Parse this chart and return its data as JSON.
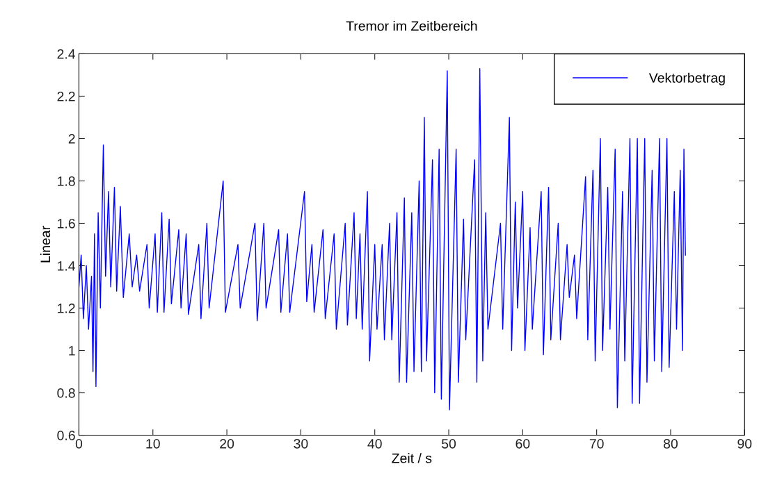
{
  "chart_data": {
    "type": "line",
    "title": "Tremor im Zeitbereich",
    "xlabel": "Zeit / s",
    "ylabel": "Linear",
    "xlim": [
      0,
      90
    ],
    "xticks": [
      0,
      10,
      20,
      30,
      40,
      50,
      60,
      70,
      80,
      90
    ],
    "ylim": [
      0.6,
      2.4
    ],
    "yticks": [
      0.6,
      0.8,
      1,
      1.2,
      1.4,
      1.6,
      1.8,
      2,
      2.2,
      2.4
    ],
    "grid": false,
    "legend": "top right",
    "marker": "none",
    "line_style": "solid",
    "series": [
      {
        "name": "Vektorbetrag",
        "color": "#0000ff",
        "x": [
          0,
          0.3,
          0.6,
          1.0,
          1.3,
          1.7,
          1.9,
          2.1,
          2.3,
          2.6,
          2.9,
          3.3,
          3.6,
          4.0,
          4.3,
          4.8,
          5.1,
          5.6,
          6.0,
          6.8,
          7.2,
          7.8,
          8.2,
          9.2,
          9.5,
          10.3,
          10.6,
          11.2,
          11.5,
          12.2,
          12.5,
          13.5,
          13.8,
          14.5,
          14.8,
          16.2,
          16.5,
          17.3,
          17.6,
          19.5,
          19.8,
          21.5,
          21.8,
          23.8,
          24.1,
          25.0,
          25.3,
          27.0,
          27.3,
          28.2,
          28.5,
          30.5,
          30.8,
          31.5,
          31.8,
          33.0,
          33.3,
          34.5,
          34.8,
          36.0,
          36.3,
          37.2,
          37.5,
          38.0,
          38.3,
          39.0,
          39.3,
          40.0,
          40.3,
          41.0,
          41.3,
          42.0,
          42.3,
          43.0,
          43.3,
          44.0,
          44.3,
          45.0,
          45.3,
          46.0,
          46.3,
          46.7,
          47.0,
          47.8,
          48.1,
          48.7,
          49.0,
          49.8,
          50.1,
          51.0,
          51.3,
          52.0,
          52.3,
          53.5,
          53.8,
          54.2,
          54.6,
          55.0,
          55.3,
          57.0,
          57.3,
          58.2,
          58.5,
          59.0,
          59.3,
          60.0,
          60.3,
          61.0,
          61.3,
          62.5,
          62.8,
          63.5,
          63.8,
          64.8,
          65.1,
          66.0,
          66.3,
          67.0,
          67.3,
          68.5,
          68.8,
          69.5,
          69.8,
          70.5,
          70.8,
          71.5,
          71.8,
          72.5,
          72.8,
          73.5,
          73.8,
          74.5,
          74.8,
          75.5,
          75.8,
          76.5,
          76.8,
          77.5,
          77.8,
          78.5,
          78.8,
          79.5,
          79.8,
          80.5,
          80.8,
          81.3,
          81.6,
          81.8,
          82.0
        ],
        "values": [
          1.3,
          1.45,
          1.15,
          1.4,
          1.1,
          1.35,
          0.9,
          1.55,
          0.83,
          1.65,
          1.2,
          1.97,
          1.35,
          1.75,
          1.3,
          1.77,
          1.28,
          1.68,
          1.25,
          1.55,
          1.3,
          1.45,
          1.28,
          1.5,
          1.2,
          1.55,
          1.18,
          1.65,
          1.18,
          1.62,
          1.22,
          1.57,
          1.2,
          1.55,
          1.17,
          1.5,
          1.15,
          1.6,
          1.2,
          1.8,
          1.18,
          1.5,
          1.2,
          1.6,
          1.14,
          1.6,
          1.2,
          1.57,
          1.18,
          1.55,
          1.18,
          1.75,
          1.23,
          1.5,
          1.18,
          1.57,
          1.15,
          1.55,
          1.1,
          1.6,
          1.12,
          1.65,
          1.15,
          1.55,
          1.1,
          1.75,
          0.95,
          1.5,
          1.1,
          1.5,
          1.05,
          1.6,
          1.05,
          1.65,
          0.85,
          1.72,
          0.85,
          1.65,
          0.9,
          1.8,
          0.9,
          2.1,
          0.95,
          1.9,
          0.8,
          1.95,
          0.77,
          2.32,
          0.72,
          1.95,
          0.85,
          1.62,
          1.05,
          1.9,
          0.85,
          2.33,
          0.95,
          1.65,
          1.1,
          1.6,
          1.1,
          2.1,
          1.0,
          1.7,
          1.2,
          1.75,
          1.0,
          1.58,
          1.1,
          1.75,
          0.98,
          1.77,
          1.05,
          1.6,
          1.05,
          1.5,
          1.25,
          1.45,
          1.15,
          1.82,
          1.05,
          1.85,
          0.95,
          2.0,
          1.0,
          1.77,
          1.1,
          1.95,
          0.73,
          1.75,
          0.95,
          2.0,
          0.75,
          2.0,
          0.75,
          2.0,
          0.85,
          1.85,
          0.95,
          2.0,
          0.9,
          2.0,
          0.92,
          1.75,
          1.1,
          1.85,
          1.0,
          1.95,
          1.45
        ]
      }
    ]
  }
}
